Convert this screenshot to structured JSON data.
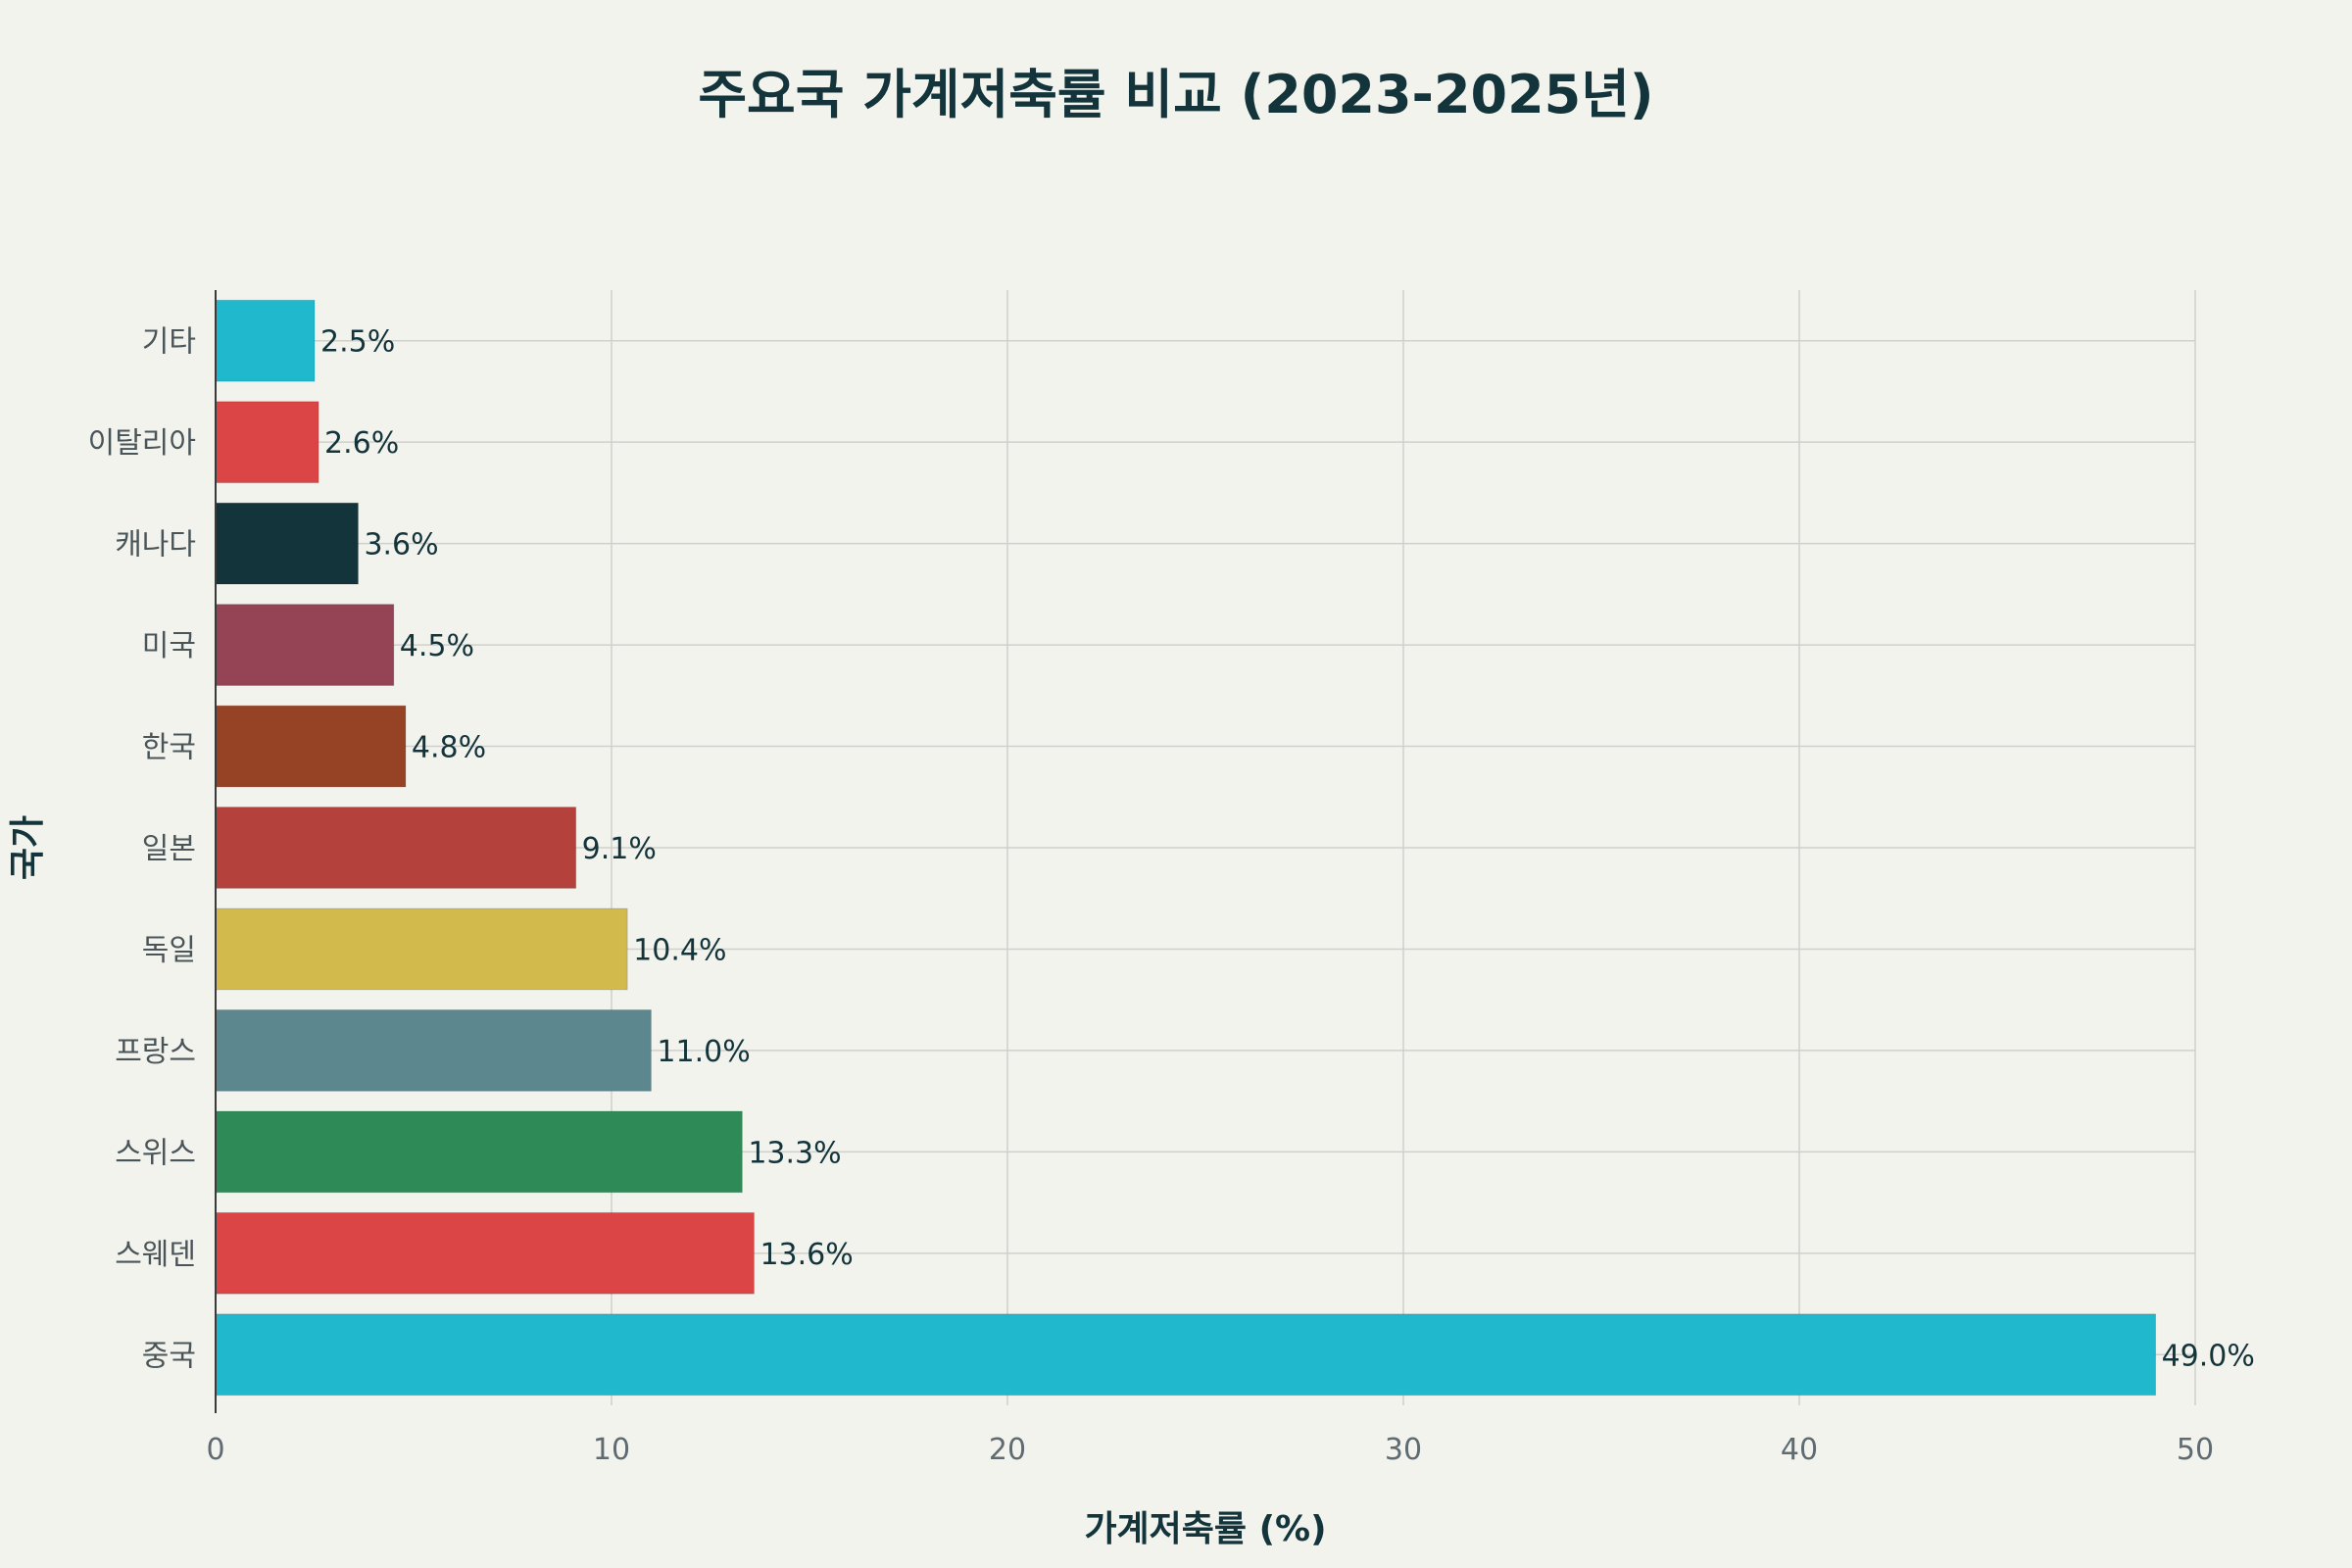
{
  "chart_data": {
    "type": "bar",
    "orientation": "horizontal",
    "title": "주요국 가계저축률 비교 (2023-2025년)",
    "xlabel": "가계저축률 (%)",
    "ylabel": "국가",
    "xlim": [
      0,
      50
    ],
    "xticks": [
      0,
      10,
      20,
      30,
      40,
      50
    ],
    "grid": true,
    "categories": [
      "기타",
      "이탈리아",
      "캐나다",
      "미국",
      "한국",
      "일본",
      "독일",
      "프랑스",
      "스위스",
      "스웨덴",
      "중국"
    ],
    "values": [
      2.5,
      2.6,
      3.6,
      4.5,
      4.8,
      9.1,
      10.4,
      11.0,
      13.3,
      13.6,
      49.0
    ],
    "data_labels": [
      "2.5%",
      "2.6%",
      "3.6%",
      "4.5%",
      "4.8%",
      "9.1%",
      "10.4%",
      "11.0%",
      "13.3%",
      "13.6%",
      "49.0%"
    ],
    "colors": [
      "#1fb8cd",
      "#db4545",
      "#13343b",
      "#944454",
      "#964325",
      "#b4413c",
      "#d2ba4c",
      "#5d878f",
      "#2e8b57",
      "#db4545",
      "#1fb8cd"
    ]
  }
}
